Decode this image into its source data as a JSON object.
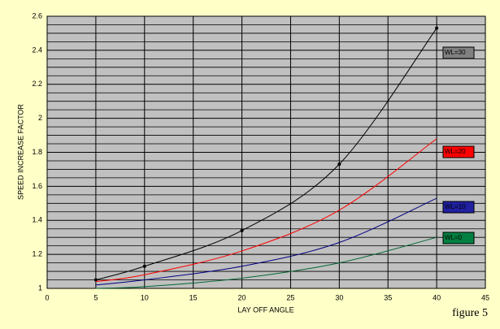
{
  "chart_data": {
    "type": "line",
    "x_label": "LAY OFF ANGLE",
    "y_label": "SPEED INCREASE FACTOR",
    "caption": "figure 5",
    "xlim": [
      0,
      45
    ],
    "xticks": [
      0,
      5,
      10,
      15,
      20,
      25,
      30,
      35,
      40,
      45
    ],
    "ylim": [
      1,
      2.6
    ],
    "yticks": [
      1,
      1.2,
      1.4,
      1.6,
      1.8,
      2,
      2.2,
      2.4,
      2.6
    ],
    "y_minor_ticks": [
      1.05,
      1.1,
      1.15,
      1.25,
      1.3,
      1.35,
      1.45,
      1.5,
      1.55,
      1.65,
      1.7,
      1.75,
      1.85,
      1.9,
      1.95,
      2.05,
      2.1,
      2.15,
      2.25,
      2.3,
      2.35,
      2.45,
      2.5,
      2.55
    ],
    "grid": true,
    "plot_background": "#c0c0c0",
    "series": [
      {
        "name": "WL=30",
        "color": "#000000",
        "label_fill": "#808080",
        "markers": true,
        "x": [
          5,
          10,
          20,
          30,
          40
        ],
        "values": [
          1.05,
          1.13,
          1.34,
          1.73,
          2.53
        ]
      },
      {
        "name": "WL=20",
        "color": "#ff0000",
        "label_fill": "#ff0000",
        "markers": false,
        "x": [
          5,
          10,
          20,
          30,
          40
        ],
        "values": [
          1.04,
          1.08,
          1.22,
          1.46,
          1.88
        ]
      },
      {
        "name": "WL=10",
        "color": "#000080",
        "label_fill": "#2020a0",
        "markers": false,
        "x": [
          5,
          10,
          20,
          30,
          40
        ],
        "values": [
          1.02,
          1.05,
          1.13,
          1.27,
          1.53
        ]
      },
      {
        "name": "WL=0",
        "color": "#006633",
        "label_fill": "#008040",
        "markers": false,
        "x": [
          5,
          10,
          20,
          30,
          40
        ],
        "values": [
          1.0,
          1.01,
          1.06,
          1.15,
          1.3
        ]
      }
    ]
  }
}
